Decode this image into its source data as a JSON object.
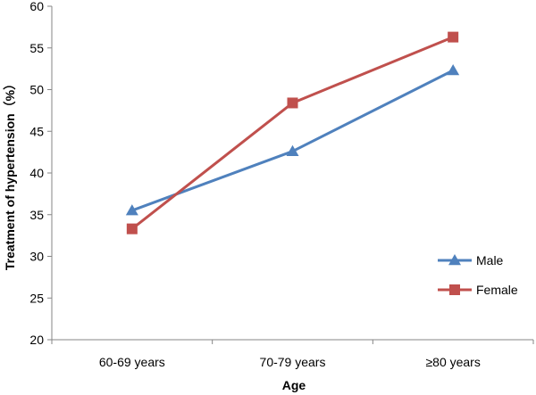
{
  "chart_data": {
    "type": "line",
    "title": "",
    "xlabel": "Age",
    "ylabel": "Treatment of hypertension（%）",
    "categories": [
      "60-69 years",
      "70-79 years",
      "≥80 years"
    ],
    "ylim": [
      20,
      60
    ],
    "yticks": [
      20,
      25,
      30,
      35,
      40,
      45,
      50,
      55,
      60
    ],
    "grid": false,
    "legend_position": "right",
    "series": [
      {
        "name": "Male",
        "values": [
          35.5,
          42.6,
          52.3
        ],
        "color": "#4f81bd",
        "marker": "triangle"
      },
      {
        "name": "Female",
        "values": [
          33.3,
          48.4,
          56.3
        ],
        "color": "#c0504d",
        "marker": "square"
      }
    ]
  }
}
